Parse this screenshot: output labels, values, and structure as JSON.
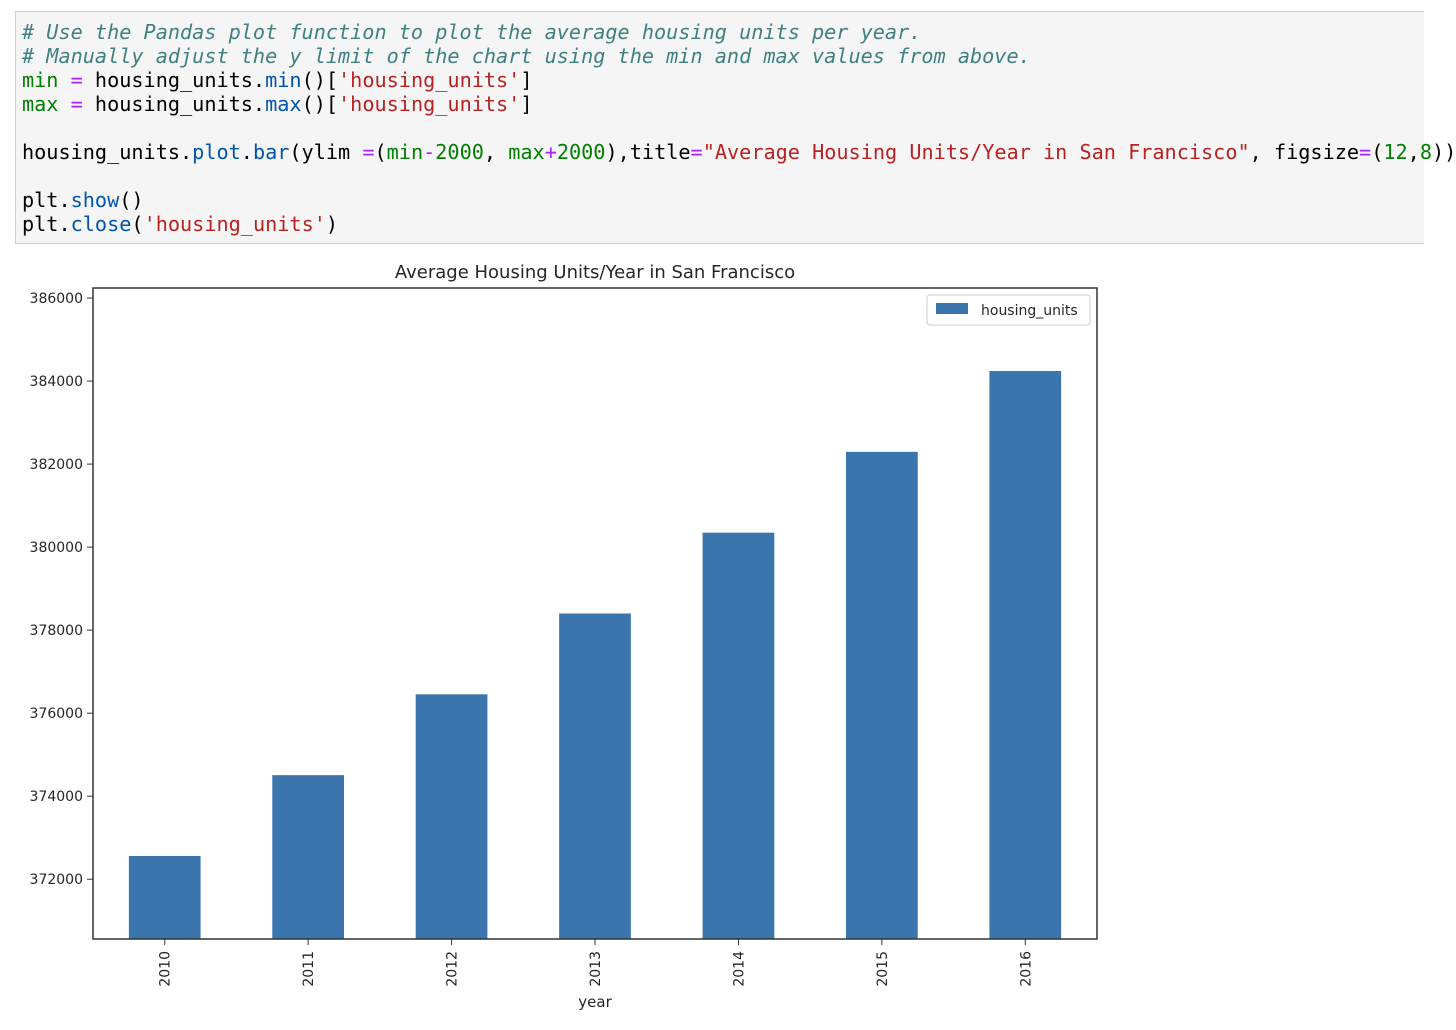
{
  "code_cell": {
    "lines": [
      "# Use the Pandas plot function to plot the average housing units per year.",
      "# Manually adjust the y limit of the chart using the min and max values from above.",
      "min = housing_units.min()['housing_units']",
      "max = housing_units.max()['housing_units']",
      "",
      "housing_units.plot.bar(ylim =(min-2000, max+2000),title=\"Average Housing Units/Year in San Francisco\", figsize=(12,8))",
      "",
      "plt.show()",
      "plt.close('housing_units')"
    ]
  },
  "colors": {
    "bar": "#3a75ae",
    "comment": "#408080",
    "string": "#ba2121",
    "keyword": "#008000",
    "operator": "#aa22ff",
    "function": "#0055aa"
  },
  "chart_data": {
    "type": "bar",
    "title": "Average Housing Units/Year in San Francisco",
    "xlabel": "year",
    "ylabel": "",
    "categories": [
      "2010",
      "2011",
      "2012",
      "2013",
      "2014",
      "2015",
      "2016"
    ],
    "series": [
      {
        "name": "housing_units",
        "values": [
          372560,
          374507,
          376454,
          378401,
          380348,
          382295,
          384242
        ]
      }
    ],
    "ylim": [
      370560,
      386242
    ],
    "yticks": [
      372000,
      374000,
      376000,
      378000,
      380000,
      382000,
      384000,
      386000
    ],
    "ytick_labels": [
      "372000",
      "374000",
      "376000",
      "378000",
      "380000",
      "382000",
      "384000",
      "386000"
    ],
    "legend_position": "top-right",
    "grid": false
  }
}
